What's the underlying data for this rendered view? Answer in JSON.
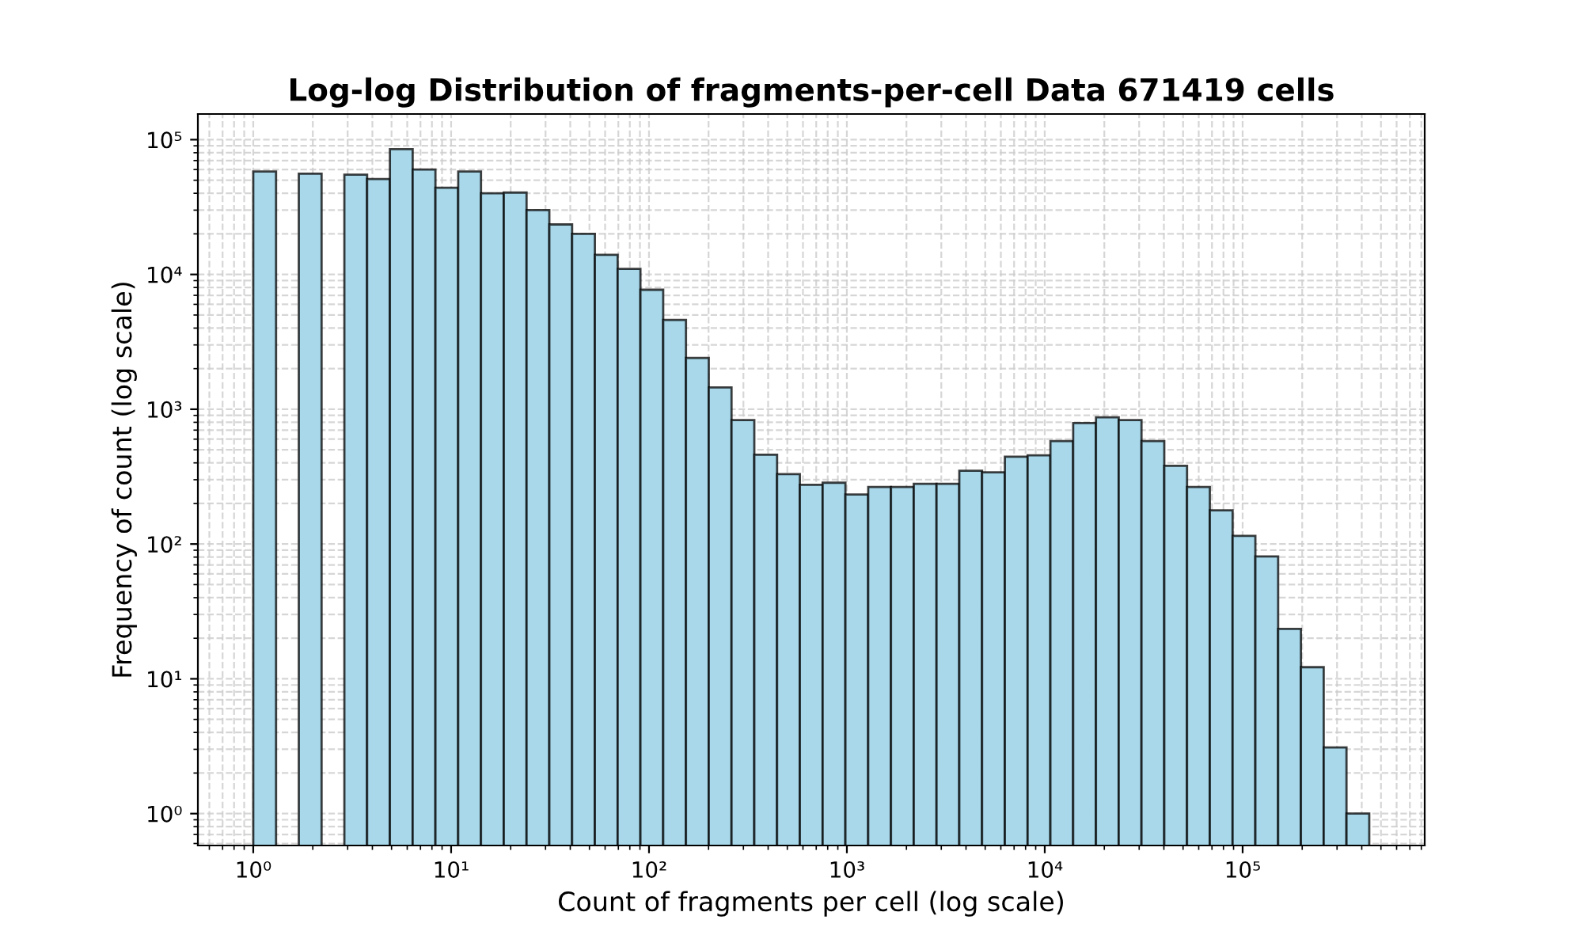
{
  "chart_data": {
    "type": "histogram",
    "title": "Log-log Distribution of fragments-per-cell Data 671419 cells",
    "xlabel": "Count of fragments per cell (log scale)",
    "ylabel": "Frequency of count (log scale)",
    "bins": [
      1,
      1.304,
      1.699,
      2.215,
      2.887,
      3.763,
      4.905,
      6.393,
      8.333,
      10.86,
      14.16,
      18.46,
      24.06,
      31.36,
      40.88,
      53.28,
      69.45,
      90.52,
      118.0,
      153.8,
      200.5,
      261.3,
      340.6,
      444.0,
      578.7,
      754.4,
      983.3,
      1282,
      1671,
      2178,
      2839,
      3700,
      4823,
      6287,
      8194,
      10680,
      13920,
      18150,
      23650,
      30830,
      40190,
      52380,
      68280,
      89000,
      116000,
      151200,
      197100,
      256900,
      334900,
      436500
    ],
    "values": [
      58000,
      null,
      56000,
      null,
      55000,
      51000,
      85000,
      60000,
      44000,
      58000,
      40000,
      40500,
      30000,
      23500,
      20000,
      14000,
      11000,
      7700,
      4600,
      2400,
      1450,
      830,
      460,
      330,
      275,
      285,
      233,
      265,
      265,
      280,
      280,
      350,
      340,
      445,
      455,
      580,
      790,
      870,
      830,
      580,
      380,
      265,
      178,
      115,
      81,
      23.5,
      12.2,
      3.1,
      1
    ],
    "color": "#a8d8ea",
    "log": "xy",
    "grid": true,
    "xlim": [
      0.525,
      832000
    ],
    "ylim": [
      0.58,
      155000
    ],
    "xticks": [
      {
        "value": 1,
        "label": "10⁰"
      },
      {
        "value": 10,
        "label": "10¹"
      },
      {
        "value": 100,
        "label": "10²"
      },
      {
        "value": 1000,
        "label": "10³"
      },
      {
        "value": 10000,
        "label": "10⁴"
      },
      {
        "value": 100000,
        "label": "10⁵"
      }
    ],
    "yticks": [
      {
        "value": 1,
        "label": "10⁰"
      },
      {
        "value": 10,
        "label": "10¹"
      },
      {
        "value": 100,
        "label": "10²"
      },
      {
        "value": 1000,
        "label": "10³"
      },
      {
        "value": 10000,
        "label": "10⁴"
      },
      {
        "value": 100000,
        "label": "10⁵"
      }
    ]
  }
}
